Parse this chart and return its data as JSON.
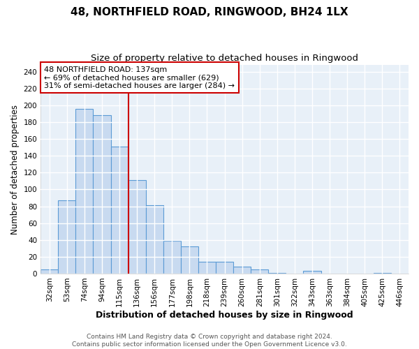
{
  "title": "48, NORTHFIELD ROAD, RINGWOOD, BH24 1LX",
  "subtitle": "Size of property relative to detached houses in Ringwood",
  "xlabel": "Distribution of detached houses by size in Ringwood",
  "ylabel": "Number of detached properties",
  "categories": [
    "32sqm",
    "53sqm",
    "74sqm",
    "94sqm",
    "115sqm",
    "136sqm",
    "156sqm",
    "177sqm",
    "198sqm",
    "218sqm",
    "239sqm",
    "260sqm",
    "281sqm",
    "301sqm",
    "322sqm",
    "343sqm",
    "363sqm",
    "384sqm",
    "405sqm",
    "425sqm",
    "446sqm"
  ],
  "values": [
    5,
    87,
    196,
    188,
    151,
    111,
    81,
    39,
    32,
    14,
    14,
    8,
    5,
    1,
    0,
    3,
    0,
    0,
    0,
    1,
    0
  ],
  "bar_color": "#c8daf0",
  "bar_edge_color": "#5b9bd5",
  "vline_x_index": 5,
  "vline_color": "#cc0000",
  "annotation_text": "48 NORTHFIELD ROAD: 137sqm\n← 69% of detached houses are smaller (629)\n31% of semi-detached houses are larger (284) →",
  "annotation_box_color": "#ffffff",
  "annotation_box_edge_color": "#cc0000",
  "ylim": [
    0,
    248
  ],
  "yticks": [
    0,
    20,
    40,
    60,
    80,
    100,
    120,
    140,
    160,
    180,
    200,
    220,
    240
  ],
  "figure_bg": "#ffffff",
  "background_color": "#e8f0f8",
  "grid_color": "#ffffff",
  "footer_line1": "Contains HM Land Registry data © Crown copyright and database right 2024.",
  "footer_line2": "Contains public sector information licensed under the Open Government Licence v3.0.",
  "title_fontsize": 11,
  "subtitle_fontsize": 9.5,
  "xlabel_fontsize": 9,
  "ylabel_fontsize": 8.5,
  "tick_fontsize": 7.5,
  "annotation_fontsize": 8,
  "footer_fontsize": 6.5
}
